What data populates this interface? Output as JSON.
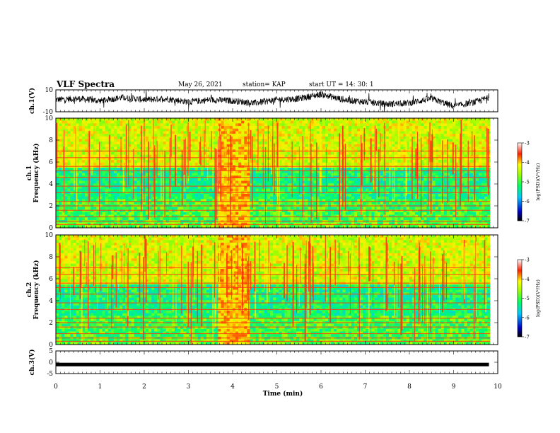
{
  "header": {
    "title": "VLF Spectra",
    "date": "May 26, 2021",
    "station": "station= KAP",
    "start": "start UT =   14: 30: 1"
  },
  "chart_data": [
    {
      "type": "line",
      "panel": "ch1-waveform",
      "ylabel": "ch.1(V)",
      "ylim": [
        -10,
        10
      ],
      "yticks": [
        "10",
        "-10"
      ],
      "description_series": "noisy waveform around 0 V",
      "series": [
        {
          "x_min": [
            0,
            0.5,
            1,
            1.5,
            2,
            2.5,
            3,
            3.5,
            4,
            4.5,
            5,
            5.5,
            6,
            6.5,
            7,
            7.5,
            8,
            8.5,
            9,
            9.5,
            9.8
          ],
          "y_volts": [
            1,
            2,
            0,
            3,
            1,
            2,
            -1,
            1,
            0,
            -2,
            1,
            2,
            6,
            1,
            -1,
            -3,
            -2,
            2,
            -5,
            -1,
            3
          ]
        }
      ]
    },
    {
      "type": "heatmap",
      "panel": "ch1-spectrogram",
      "ylabel_top": "ch.1",
      "ylabel": "Frequency (kHz)",
      "ylim": [
        0,
        10
      ],
      "yticks": [
        "0",
        "2",
        "4",
        "6",
        "8",
        "10"
      ],
      "xlim": [
        0,
        10
      ],
      "colorbar": {
        "label": "log(PSD)(V²/Hz)",
        "range": [
          -7,
          -3
        ],
        "ticks": [
          "-3",
          "-4",
          "-5",
          "-6",
          "-7"
        ]
      },
      "burst_interval_min": [
        3.7,
        4.35
      ]
    },
    {
      "type": "heatmap",
      "panel": "ch2-spectrogram",
      "ylabel_top": "ch.2",
      "ylabel": "Frequency (kHz)",
      "ylim": [
        0,
        10
      ],
      "yticks": [
        "0",
        "2",
        "4",
        "6",
        "8",
        "10"
      ],
      "xlim": [
        0,
        10
      ],
      "colorbar": {
        "label": "log(PSD)(V²/Hz)",
        "range": [
          -7,
          -3
        ],
        "ticks": [
          "-3",
          "-4",
          "-5",
          "-6",
          "-7"
        ]
      },
      "burst_interval_min": [
        3.7,
        4.35
      ]
    },
    {
      "type": "line",
      "panel": "ch3-waveform",
      "ylabel": "ch.3(V)",
      "ylim": [
        -5,
        5
      ],
      "yticks": [
        "5",
        "0",
        "-5"
      ],
      "series": [
        {
          "x_min": [
            0,
            9.8
          ],
          "y_volts": [
            -1,
            -1
          ]
        }
      ]
    }
  ],
  "xaxis": {
    "label": "Time (min)",
    "range": [
      0,
      10
    ],
    "ticks": [
      "0",
      "1",
      "2",
      "3",
      "4",
      "5",
      "6",
      "7",
      "8",
      "9",
      "10"
    ]
  }
}
